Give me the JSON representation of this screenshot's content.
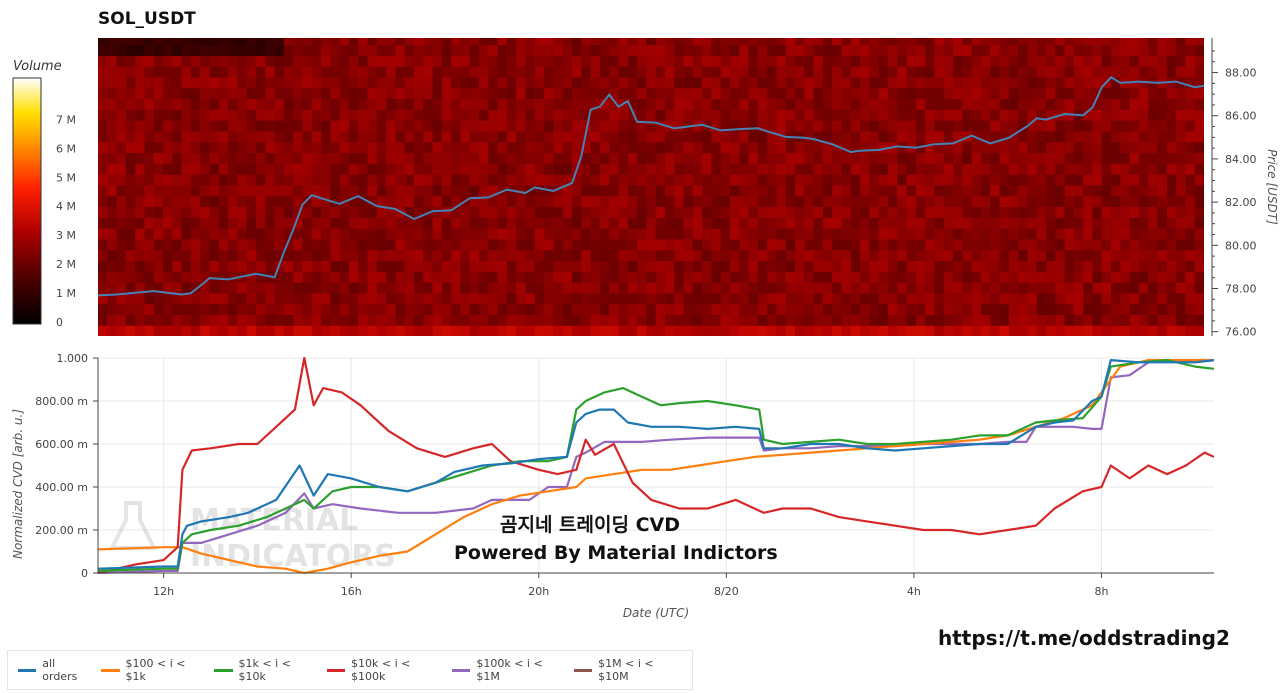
{
  "title": "SOL_USDT",
  "overlay_text": {
    "line1": "곰지네 트레이딩 CVD",
    "line2": "Powered By Material Indictors"
  },
  "url_text": "https://t.me/oddstrading2",
  "watermark": {
    "line1": "MATERIAL",
    "line2": "INDICATORS"
  },
  "colors": {
    "all_orders": "#1f77b4",
    "s100_1k": "#ff7f0e",
    "s1k_10k": "#2ca02c",
    "s10k_100k": "#d62728",
    "s100k_1m": "#9467bd",
    "s1m_10m": "#8c564b",
    "price_line": "#4682b4"
  },
  "chart_data": [
    {
      "type": "heatmap",
      "title": "SOL_USDT",
      "ylabel": "Price [USDT]",
      "ylim": [
        75.8,
        89.6
      ],
      "yticks": [
        76.0,
        78.0,
        80.0,
        82.0,
        84.0,
        86.0,
        88.0
      ],
      "ytick_labels": [
        "76.00",
        "78.00",
        "80.00",
        "82.00",
        "84.00",
        "86.00",
        "88.00"
      ],
      "colorbar": {
        "title": "Volume",
        "range": [
          0,
          8500000
        ],
        "ticks": [
          0,
          1000000,
          2000000,
          3000000,
          4000000,
          5000000,
          6000000,
          7000000
        ],
        "tick_labels": [
          "0",
          "1 M",
          "2 M",
          "3 M",
          "4 M",
          "5 M",
          "6 M",
          "7 M"
        ]
      },
      "xlim": [
        10.6,
        34.4
      ],
      "price_series": {
        "x": [
          10.6,
          11,
          11.8,
          12.4,
          12.6,
          12.8,
          13,
          13.4,
          14,
          14.4,
          14.6,
          14.8,
          15,
          15.2,
          15.4,
          15.8,
          16.2,
          16.6,
          17,
          17.4,
          17.8,
          18.2,
          18.6,
          19,
          19.4,
          19.8,
          20,
          20.4,
          20.8,
          21,
          21.2,
          21.4,
          21.6,
          21.8,
          22,
          22.2,
          22.6,
          23,
          23.6,
          24,
          24.4,
          24.8,
          25,
          25.4,
          25.8,
          26,
          26.4,
          26.8,
          27,
          27.4,
          27.8,
          28.2,
          28.6,
          29,
          29.4,
          29.8,
          30.2,
          30.6,
          30.8,
          31,
          31.4,
          31.8,
          32,
          32.2,
          32.4,
          32.6,
          33,
          33.4,
          33.8,
          34.2,
          34.4
        ],
        "y": [
          77.6,
          77.8,
          77.8,
          77.8,
          77.7,
          78.2,
          78.4,
          78.5,
          78.6,
          78.6,
          79.6,
          80.8,
          81.8,
          82.4,
          82.1,
          82.0,
          82.2,
          81.9,
          81.6,
          81.3,
          81.5,
          81.7,
          82.1,
          82.3,
          82.5,
          82.5,
          82.6,
          82.6,
          82.8,
          84.2,
          86.2,
          86.5,
          86.9,
          86.5,
          86.6,
          85.8,
          85.6,
          85.5,
          85.5,
          85.4,
          85.3,
          85.5,
          85.2,
          85.1,
          84.9,
          85.0,
          84.6,
          84.4,
          84.3,
          84.5,
          84.5,
          84.6,
          84.6,
          84.8,
          85.0,
          84.8,
          84.9,
          85.6,
          85.8,
          85.9,
          86.0,
          86.1,
          86.3,
          87.4,
          87.7,
          87.6,
          87.5,
          87.6,
          87.5,
          87.4,
          87.3
        ]
      },
      "hot_bands": [
        {
          "price": 77.75,
          "x_start": 10.6,
          "x_end": 12.4,
          "intensity": 0.72
        },
        {
          "price": 78.75,
          "x_start": 12.4,
          "x_end": 14.3,
          "intensity": 0.42
        },
        {
          "price": 81.25,
          "x_start": 14.4,
          "x_end": 15.9,
          "intensity": 0.38
        },
        {
          "price": 81.75,
          "x_start": 15.2,
          "x_end": 19.0,
          "intensity": 0.48
        },
        {
          "price": 83.25,
          "x_start": 15.2,
          "x_end": 17.8,
          "intensity": 0.55
        },
        {
          "price": 83.25,
          "x_start": 17.8,
          "x_end": 20.4,
          "intensity": 0.72
        },
        {
          "price": 87.25,
          "x_start": 20.8,
          "x_end": 21.6,
          "intensity": 0.42
        },
        {
          "price": 86.25,
          "x_start": 22.0,
          "x_end": 24.2,
          "intensity": 0.5
        },
        {
          "price": 86.25,
          "x_start": 24.2,
          "x_end": 26.0,
          "intensity": 0.62
        },
        {
          "price": 85.25,
          "x_start": 24.2,
          "x_end": 30.6,
          "intensity": 0.42
        },
        {
          "price": 85.75,
          "x_start": 26.2,
          "x_end": 30.4,
          "intensity": 0.52
        },
        {
          "price": 86.25,
          "x_start": 30.5,
          "x_end": 32.1,
          "intensity": 0.55
        },
        {
          "price": 88.25,
          "x_start": 32.1,
          "x_end": 34.4,
          "intensity": 0.82
        },
        {
          "price": 87.25,
          "x_start": 32.4,
          "x_end": 33.2,
          "intensity": 0.35
        }
      ]
    },
    {
      "type": "line",
      "xlabel": "Date (UTC)",
      "ylabel": "Normalized CVD [arb. u.]",
      "xlim": [
        10.6,
        34.4
      ],
      "ylim": [
        0,
        1.0
      ],
      "xticks": [
        12,
        16,
        20,
        24,
        28,
        32
      ],
      "xtick_labels": [
        "12h",
        "16h",
        "20h",
        "8/20",
        "4h",
        "8h"
      ],
      "yticks": [
        0,
        0.2,
        0.4,
        0.6,
        0.8,
        1.0
      ],
      "ytick_labels": [
        "0",
        "200.00 m",
        "400.00 m",
        "600.00 m",
        "800.00 m",
        "1.000"
      ],
      "legend_position": "bottom-left",
      "series": [
        {
          "name": "all orders",
          "x": [
            10.6,
            12.0,
            12.3,
            12.4,
            12.5,
            12.8,
            13.4,
            13.8,
            14.4,
            14.9,
            15.2,
            15.5,
            16.0,
            16.6,
            17.2,
            17.8,
            18.2,
            18.8,
            19.4,
            20.0,
            20.6,
            20.8,
            21.0,
            21.3,
            21.6,
            21.9,
            22.4,
            23.0,
            23.6,
            24.2,
            24.7,
            24.8,
            25.2,
            25.8,
            26.4,
            27.0,
            27.6,
            28.2,
            28.8,
            29.4,
            30.0,
            30.6,
            31.0,
            31.4,
            31.8,
            32.0,
            32.2,
            32.8,
            33.4,
            34.0,
            34.4
          ],
          "y": [
            0.02,
            0.03,
            0.03,
            0.18,
            0.22,
            0.24,
            0.26,
            0.28,
            0.34,
            0.5,
            0.36,
            0.46,
            0.44,
            0.4,
            0.38,
            0.42,
            0.47,
            0.5,
            0.51,
            0.53,
            0.54,
            0.7,
            0.74,
            0.76,
            0.76,
            0.7,
            0.68,
            0.68,
            0.67,
            0.68,
            0.67,
            0.58,
            0.58,
            0.6,
            0.6,
            0.58,
            0.57,
            0.58,
            0.59,
            0.6,
            0.6,
            0.68,
            0.7,
            0.71,
            0.8,
            0.82,
            0.99,
            0.98,
            0.98,
            0.98,
            0.99
          ]
        },
        {
          "name": "$100 < i < $1k",
          "x": [
            10.6,
            12.0,
            12.4,
            12.8,
            13.4,
            14.0,
            14.6,
            15.0,
            15.5,
            16.0,
            16.6,
            17.2,
            17.8,
            18.4,
            19.0,
            19.6,
            20.2,
            20.8,
            21.0,
            21.6,
            22.2,
            22.8,
            23.4,
            24.0,
            24.6,
            25.2,
            25.8,
            26.4,
            27.0,
            27.6,
            28.2,
            28.8,
            29.4,
            30.0,
            30.6,
            31.2,
            31.8,
            32.4,
            33.0,
            33.6,
            34.4
          ],
          "y": [
            0.11,
            0.12,
            0.12,
            0.09,
            0.06,
            0.03,
            0.02,
            0.0,
            0.02,
            0.05,
            0.08,
            0.1,
            0.18,
            0.26,
            0.32,
            0.36,
            0.38,
            0.4,
            0.44,
            0.46,
            0.48,
            0.48,
            0.5,
            0.52,
            0.54,
            0.55,
            0.56,
            0.57,
            0.58,
            0.59,
            0.6,
            0.61,
            0.62,
            0.64,
            0.68,
            0.72,
            0.78,
            0.96,
            0.99,
            0.99,
            0.99
          ]
        },
        {
          "name": "$1k < i < $10k",
          "x": [
            10.6,
            12.0,
            12.3,
            12.4,
            12.6,
            13.0,
            13.6,
            14.2,
            14.8,
            15.0,
            15.2,
            15.6,
            16.0,
            16.6,
            17.2,
            17.8,
            18.4,
            19.0,
            19.6,
            20.2,
            20.6,
            20.8,
            21.0,
            21.4,
            21.8,
            22.2,
            22.6,
            23.0,
            23.6,
            24.2,
            24.7,
            24.8,
            25.2,
            25.8,
            26.4,
            27.0,
            27.6,
            28.2,
            28.8,
            29.4,
            30.0,
            30.6,
            31.0,
            31.6,
            32.0,
            32.2,
            32.8,
            33.4,
            34.0,
            34.4
          ],
          "y": [
            0.01,
            0.02,
            0.02,
            0.14,
            0.18,
            0.2,
            0.22,
            0.26,
            0.32,
            0.34,
            0.3,
            0.38,
            0.4,
            0.4,
            0.38,
            0.42,
            0.46,
            0.5,
            0.52,
            0.52,
            0.54,
            0.76,
            0.8,
            0.84,
            0.86,
            0.82,
            0.78,
            0.79,
            0.8,
            0.78,
            0.76,
            0.62,
            0.6,
            0.61,
            0.62,
            0.6,
            0.6,
            0.61,
            0.62,
            0.64,
            0.64,
            0.7,
            0.71,
            0.72,
            0.82,
            0.96,
            0.98,
            0.99,
            0.96,
            0.95
          ]
        },
        {
          "name": "$10k < i < $100k",
          "x": [
            10.6,
            11.4,
            12.0,
            12.3,
            12.4,
            12.6,
            13.0,
            13.6,
            14.0,
            14.4,
            14.8,
            15.0,
            15.2,
            15.4,
            15.8,
            16.2,
            16.8,
            17.4,
            18.0,
            18.6,
            19.0,
            19.4,
            20.0,
            20.4,
            20.8,
            21.0,
            21.2,
            21.6,
            22.0,
            22.4,
            23.0,
            23.6,
            24.2,
            24.8,
            25.2,
            25.8,
            26.4,
            27.0,
            27.6,
            28.2,
            28.8,
            29.4,
            30.0,
            30.6,
            31.0,
            31.6,
            32.0,
            32.2,
            32.6,
            33.0,
            33.4,
            33.8,
            34.2,
            34.4
          ],
          "y": [
            0.0,
            0.04,
            0.06,
            0.12,
            0.48,
            0.57,
            0.58,
            0.6,
            0.6,
            0.68,
            0.76,
            1.0,
            0.78,
            0.86,
            0.84,
            0.78,
            0.66,
            0.58,
            0.54,
            0.58,
            0.6,
            0.52,
            0.48,
            0.46,
            0.48,
            0.62,
            0.55,
            0.6,
            0.42,
            0.34,
            0.3,
            0.3,
            0.34,
            0.28,
            0.3,
            0.3,
            0.26,
            0.24,
            0.22,
            0.2,
            0.2,
            0.18,
            0.2,
            0.22,
            0.3,
            0.38,
            0.4,
            0.5,
            0.44,
            0.5,
            0.46,
            0.5,
            0.56,
            0.54
          ]
        },
        {
          "name": "$100k < i < $1M",
          "x": [
            10.6,
            12.0,
            12.3,
            12.4,
            12.8,
            13.4,
            14.0,
            14.6,
            15.0,
            15.2,
            15.6,
            16.2,
            17.0,
            17.8,
            18.6,
            19.0,
            19.8,
            20.2,
            20.6,
            20.8,
            21.0,
            21.4,
            22.2,
            22.8,
            23.6,
            24.2,
            24.7,
            24.8,
            25.2,
            25.8,
            26.4,
            27.0,
            27.6,
            28.2,
            28.8,
            29.4,
            30.0,
            30.4,
            30.6,
            31.4,
            31.8,
            32.0,
            32.2,
            32.6,
            33.0,
            33.6,
            34.0,
            34.4
          ],
          "y": [
            0.0,
            0.01,
            0.01,
            0.14,
            0.14,
            0.18,
            0.22,
            0.28,
            0.37,
            0.3,
            0.32,
            0.3,
            0.28,
            0.28,
            0.3,
            0.34,
            0.34,
            0.4,
            0.4,
            0.54,
            0.56,
            0.61,
            0.61,
            0.62,
            0.63,
            0.63,
            0.63,
            0.57,
            0.58,
            0.58,
            0.59,
            0.59,
            0.59,
            0.6,
            0.6,
            0.6,
            0.61,
            0.61,
            0.68,
            0.68,
            0.67,
            0.67,
            0.91,
            0.92,
            0.98,
            0.99,
            0.98,
            0.99
          ]
        },
        {
          "name": "$1M < i < $10M",
          "x": [],
          "y": []
        }
      ]
    }
  ]
}
